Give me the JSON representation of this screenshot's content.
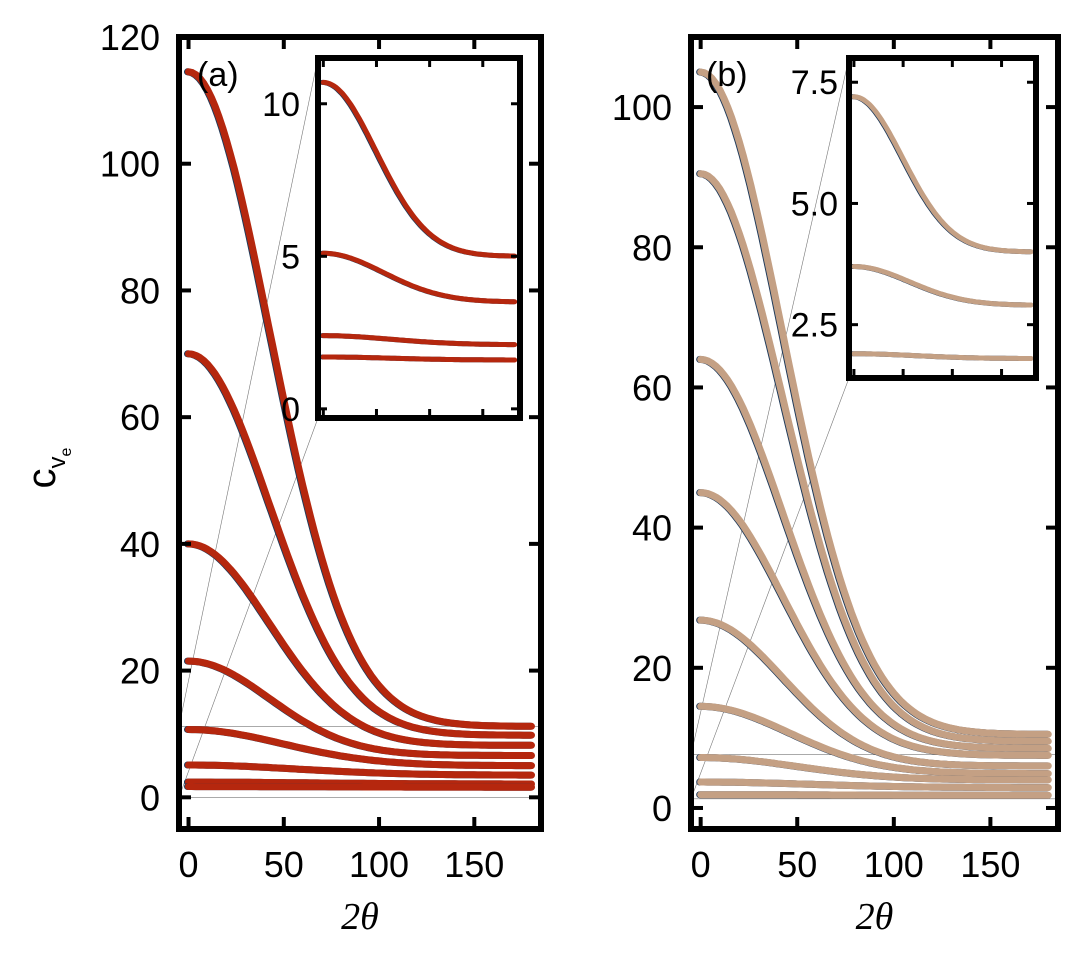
{
  "chart_data": [
    {
      "type": "line",
      "panel_label": "(a)",
      "xlabel": "2θ",
      "ylabel_main": "c",
      "ylabel_sub": "v",
      "ylabel_subsub": "e",
      "xlim": [
        -5,
        185
      ],
      "ylim": [
        -5,
        120
      ],
      "xticks": [
        0,
        50,
        100,
        150
      ],
      "yticks": [
        0,
        20,
        40,
        60,
        80,
        100,
        120
      ],
      "line_color": "#b5270e",
      "shadow_color": "#1f3a5a",
      "series": [
        {
          "name": "curve-1",
          "start": 114.5,
          "end": 11.2,
          "width": 60
        },
        {
          "name": "curve-2",
          "start": 70.0,
          "end": 9.8,
          "width": 60
        },
        {
          "name": "curve-3",
          "start": 40.0,
          "end": 8.2,
          "width": 60
        },
        {
          "name": "curve-4",
          "start": 21.5,
          "end": 6.6,
          "width": 60
        },
        {
          "name": "curve-5",
          "start": 10.7,
          "end": 5.0,
          "width": 70
        },
        {
          "name": "curve-6",
          "start": 5.1,
          "end": 3.5,
          "width": 80
        },
        {
          "name": "curve-7",
          "start": 2.4,
          "end": 2.1,
          "width": 90
        },
        {
          "name": "curve-8",
          "start": 1.7,
          "end": 1.6,
          "width": 90
        }
      ],
      "inset": {
        "xlim": [
          -5,
          185
        ],
        "ylim": [
          -0.3,
          11.5
        ],
        "yticks": [
          0,
          5,
          10
        ],
        "series_indices": [
          4,
          5,
          6,
          7
        ],
        "zoom_ylim": [
          0,
          11.2
        ]
      }
    },
    {
      "type": "line",
      "panel_label": "(b)",
      "xlabel": "2θ",
      "xlim": [
        -5,
        185
      ],
      "ylim": [
        -3,
        110
      ],
      "xticks": [
        0,
        50,
        100,
        150
      ],
      "yticks": [
        0,
        20,
        40,
        60,
        80,
        100
      ],
      "line_color": "#c4a084",
      "shadow_color": "#1f3a5a",
      "series": [
        {
          "name": "curve-1",
          "start": 105.0,
          "end": 10.5,
          "width": 60
        },
        {
          "name": "curve-2",
          "start": 90.5,
          "end": 9.5,
          "width": 60
        },
        {
          "name": "curve-3",
          "start": 64.0,
          "end": 8.5,
          "width": 60
        },
        {
          "name": "curve-4",
          "start": 45.0,
          "end": 7.5,
          "width": 60
        },
        {
          "name": "curve-5",
          "start": 26.8,
          "end": 6.0,
          "width": 60
        },
        {
          "name": "curve-6",
          "start": 14.5,
          "end": 4.9,
          "width": 65
        },
        {
          "name": "curve-7",
          "start": 7.2,
          "end": 4.0,
          "width": 70
        },
        {
          "name": "curve-8",
          "start": 3.7,
          "end": 2.9,
          "width": 80
        },
        {
          "name": "curve-9",
          "start": 1.9,
          "end": 1.8,
          "width": 90
        }
      ],
      "inset": {
        "xlim": [
          -5,
          185
        ],
        "ylim": [
          1.4,
          8.0
        ],
        "yticks": [
          2.5,
          5.0,
          7.5
        ],
        "series_indices": [
          6,
          7,
          8
        ],
        "zoom_ylim": [
          1.3,
          7.6
        ]
      }
    }
  ]
}
